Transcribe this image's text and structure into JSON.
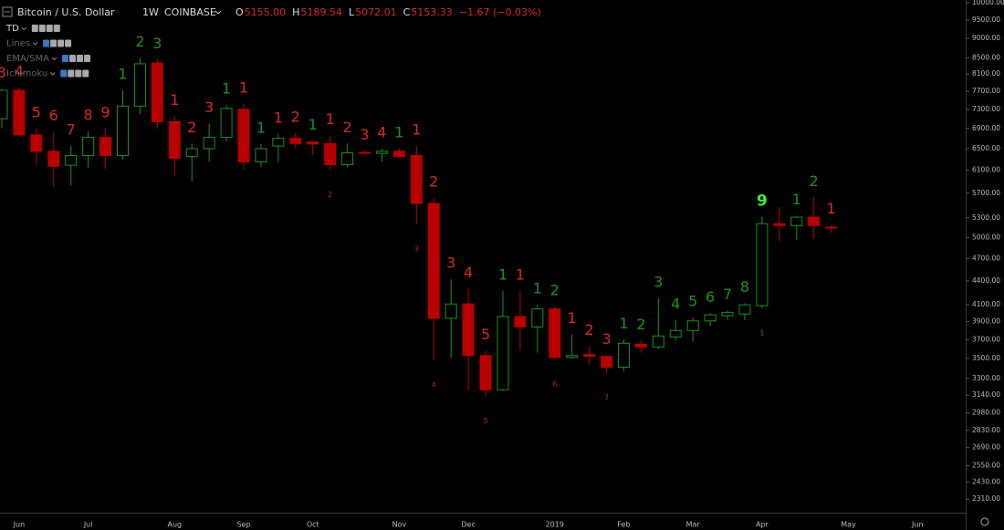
{
  "header": {
    "symbol": "Bitcoin / U.S. Dollar",
    "interval": "1W",
    "exchange": "COINBASE",
    "ohlc": [
      {
        "label": "O",
        "value": "5155.00"
      },
      {
        "label": "H",
        "value": "5189.54"
      },
      {
        "label": "L",
        "value": "5072.01"
      },
      {
        "label": "C",
        "value": "5153.33"
      }
    ],
    "change": "−1.67 (−0.03%)"
  },
  "indicators": [
    "TD",
    "Lines",
    "EMA/SMA",
    "Ichimoku"
  ],
  "chart_data": {
    "type": "candlestick",
    "log_scale": true,
    "up_color": "#1f8f1f",
    "down_color": "#b80000",
    "ylim": [
      2220,
      10080
    ],
    "yticks": [
      {
        "value": 10000,
        "label": "10000.00"
      },
      {
        "value": 9500,
        "label": "9500.00"
      },
      {
        "value": 9000,
        "label": "9000.00"
      },
      {
        "value": 8500,
        "label": "8500.00"
      },
      {
        "value": 8100,
        "label": "8100.00"
      },
      {
        "value": 7700,
        "label": "7700.00"
      },
      {
        "value": 7300,
        "label": "7300.00"
      },
      {
        "value": 6900,
        "label": "6900.00"
      },
      {
        "value": 6500,
        "label": "6500.00"
      },
      {
        "value": 6100,
        "label": "6100.00"
      },
      {
        "value": 5700,
        "label": "5700.00"
      },
      {
        "value": 5300,
        "label": "5300.00"
      },
      {
        "value": 5000,
        "label": "5000.00"
      },
      {
        "value": 4700,
        "label": "4700.00"
      },
      {
        "value": 4400,
        "label": "4400.00"
      },
      {
        "value": 4100,
        "label": "4100.00"
      },
      {
        "value": 3900,
        "label": "3900.00"
      },
      {
        "value": 3700,
        "label": "3700.00"
      },
      {
        "value": 3500,
        "label": "3500.00"
      },
      {
        "value": 3300,
        "label": "3300.00"
      },
      {
        "value": 3140,
        "label": "3140.00"
      },
      {
        "value": 2980,
        "label": "2980.00"
      },
      {
        "value": 2830,
        "label": "2830.00"
      },
      {
        "value": 2690,
        "label": "2690.00"
      },
      {
        "value": 2550,
        "label": "2550.00"
      },
      {
        "value": 2430,
        "label": "2430.00"
      },
      {
        "value": 2310,
        "label": "2310.00"
      }
    ],
    "categories": [
      null,
      "Jun",
      null,
      null,
      null,
      "Jul",
      null,
      null,
      null,
      null,
      "Aug",
      null,
      null,
      null,
      "Sep",
      null,
      null,
      null,
      "Oct",
      null,
      null,
      null,
      null,
      "Nov",
      null,
      null,
      null,
      "Dec",
      null,
      null,
      null,
      null,
      "2019",
      null,
      null,
      null,
      "Feb",
      null,
      null,
      null,
      "Mar",
      null,
      null,
      null,
      "Apr",
      null,
      null,
      null,
      null,
      "May",
      null,
      null,
      null,
      "Jun"
    ],
    "open": [
      7100,
      7720,
      6770,
      6450,
      6190,
      6370,
      6720,
      6370,
      7370,
      8370,
      7040,
      6350,
      6500,
      6720,
      7300,
      6250,
      6550,
      6700,
      6630,
      6600,
      6200,
      6430,
      6410,
      6450,
      6370,
      5530,
      3940,
      4110,
      3530,
      3190,
      3960,
      3840,
      4050,
      3510,
      3540,
      3520,
      3410,
      3650,
      3620,
      3730,
      3800,
      3910,
      3970,
      3990,
      4090,
      5210,
      5180,
      5310,
      5155,
      null,
      null,
      null,
      null,
      null
    ],
    "high": [
      7750,
      7780,
      6900,
      6830,
      6550,
      6840,
      6900,
      7720,
      8500,
      8450,
      7150,
      6600,
      7000,
      7400,
      7420,
      6590,
      6790,
      6800,
      6650,
      6760,
      6600,
      6460,
      6500,
      6500,
      6550,
      5620,
      4420,
      4300,
      3580,
      4270,
      4270,
      4100,
      4080,
      3760,
      3630,
      3530,
      3700,
      3690,
      4180,
      3920,
      3950,
      4000,
      4030,
      4120,
      5320,
      5470,
      5330,
      5630,
      5189.54,
      null,
      null,
      null,
      null,
      null
    ],
    "low": [
      6900,
      6750,
      6200,
      5800,
      5830,
      6150,
      6120,
      6300,
      7200,
      6900,
      6000,
      5900,
      6250,
      6650,
      6100,
      6160,
      6250,
      6500,
      6380,
      6100,
      6150,
      6420,
      6250,
      6330,
      5200,
      3480,
      3500,
      3190,
      3130,
      3180,
      3580,
      3560,
      3490,
      3500,
      3440,
      3350,
      3370,
      3560,
      3600,
      3690,
      3680,
      3850,
      3920,
      3920,
      4060,
      4940,
      4960,
      4980,
      5072.01,
      null,
      null,
      null,
      null,
      null
    ],
    "close": [
      7720,
      6770,
      6450,
      6170,
      6370,
      6720,
      6370,
      7370,
      8350,
      7040,
      6320,
      6500,
      6720,
      7320,
      6250,
      6500,
      6700,
      6600,
      6590,
      6200,
      6420,
      6410,
      6450,
      6350,
      5530,
      3940,
      4110,
      3530,
      3190,
      3960,
      3840,
      4050,
      3510,
      3530,
      3520,
      3410,
      3660,
      3620,
      3740,
      3800,
      3910,
      3980,
      4010,
      4100,
      5210,
      5180,
      5310,
      5180,
      5153.33,
      null,
      null,
      null,
      null,
      null
    ],
    "td_top": [
      {
        "text": "3",
        "color": "#d42a22"
      },
      {
        "text": "4",
        "color": "#d42a22"
      },
      {
        "text": "5",
        "color": "#d42a22"
      },
      {
        "text": "6",
        "color": "#d42a22"
      },
      {
        "text": "7",
        "color": "#d42a22"
      },
      {
        "text": "8",
        "color": "#d42a22"
      },
      {
        "text": "9",
        "color": "#d42a22"
      },
      {
        "text": "1",
        "color": "#1f8f1f"
      },
      {
        "text": "2",
        "color": "#1f8f1f"
      },
      {
        "text": "3",
        "color": "#1f8f1f"
      },
      {
        "text": "1",
        "color": "#d42a22"
      },
      {
        "text": "2",
        "color": "#d42a22"
      },
      {
        "text": "3",
        "color": "#d42a22"
      },
      {
        "text": "1",
        "color": "#1f8f1f"
      },
      {
        "text": "1",
        "color": "#d42a22"
      },
      {
        "text": "1",
        "color": "#1f8f1f"
      },
      {
        "text": "1",
        "color": "#d42a22"
      },
      {
        "text": "2",
        "color": "#d42a22"
      },
      {
        "text": "1",
        "color": "#1f8f1f"
      },
      {
        "text": "1",
        "color": "#d42a22"
      },
      {
        "text": "2",
        "color": "#d42a22"
      },
      {
        "text": "3",
        "color": "#d42a22"
      },
      {
        "text": "4",
        "color": "#d42a22"
      },
      {
        "text": "1",
        "color": "#1f8f1f"
      },
      {
        "text": "1",
        "color": "#d42a22"
      },
      {
        "text": "2",
        "color": "#d42a22"
      },
      {
        "text": "3",
        "color": "#d42a22"
      },
      {
        "text": "4",
        "color": "#d42a22"
      },
      {
        "text": "5",
        "color": "#d42a22"
      },
      {
        "text": "1",
        "color": "#1f8f1f"
      },
      {
        "text": "1",
        "color": "#d42a22"
      },
      {
        "text": "1",
        "color": "#1f8f1f"
      },
      {
        "text": "2",
        "color": "#1f8f1f"
      },
      {
        "text": "1",
        "color": "#d42a22"
      },
      {
        "text": "2",
        "color": "#d42a22"
      },
      {
        "text": "3",
        "color": "#d42a22"
      },
      {
        "text": "1",
        "color": "#1f8f1f"
      },
      {
        "text": "2",
        "color": "#1f8f1f"
      },
      {
        "text": "3",
        "color": "#1f8f1f"
      },
      {
        "text": "4",
        "color": "#1f8f1f"
      },
      {
        "text": "5",
        "color": "#1f8f1f"
      },
      {
        "text": "6",
        "color": "#1f8f1f"
      },
      {
        "text": "7",
        "color": "#1f8f1f"
      },
      {
        "text": "8",
        "color": "#1f8f1f"
      },
      {
        "text": "9",
        "color": "#3cf03c"
      },
      null,
      {
        "text": "1",
        "color": "#1f8f1f"
      },
      {
        "text": "2",
        "color": "#1f8f1f"
      },
      {
        "text": "1",
        "color": "#d42a22"
      },
      null,
      null,
      null,
      null,
      null
    ],
    "td_bottom": [
      null,
      null,
      null,
      null,
      null,
      null,
      null,
      null,
      null,
      null,
      null,
      null,
      null,
      null,
      null,
      null,
      null,
      null,
      null,
      {
        "text": "2",
        "color": "#b82a22"
      },
      null,
      null,
      null,
      null,
      {
        "text": "3",
        "color": "#b82a22"
      },
      {
        "text": "4",
        "color": "#b82a22"
      },
      null,
      null,
      {
        "text": "5",
        "color": "#b82a22"
      },
      null,
      null,
      null,
      {
        "text": "6",
        "color": "#b82a22"
      },
      null,
      null,
      {
        "text": "7",
        "color": "#b82a22"
      },
      null,
      null,
      null,
      null,
      null,
      null,
      null,
      null,
      {
        "text": "1",
        "color": "#1f8f1f"
      },
      null,
      null,
      null,
      null,
      null,
      null,
      null,
      null,
      null
    ]
  }
}
